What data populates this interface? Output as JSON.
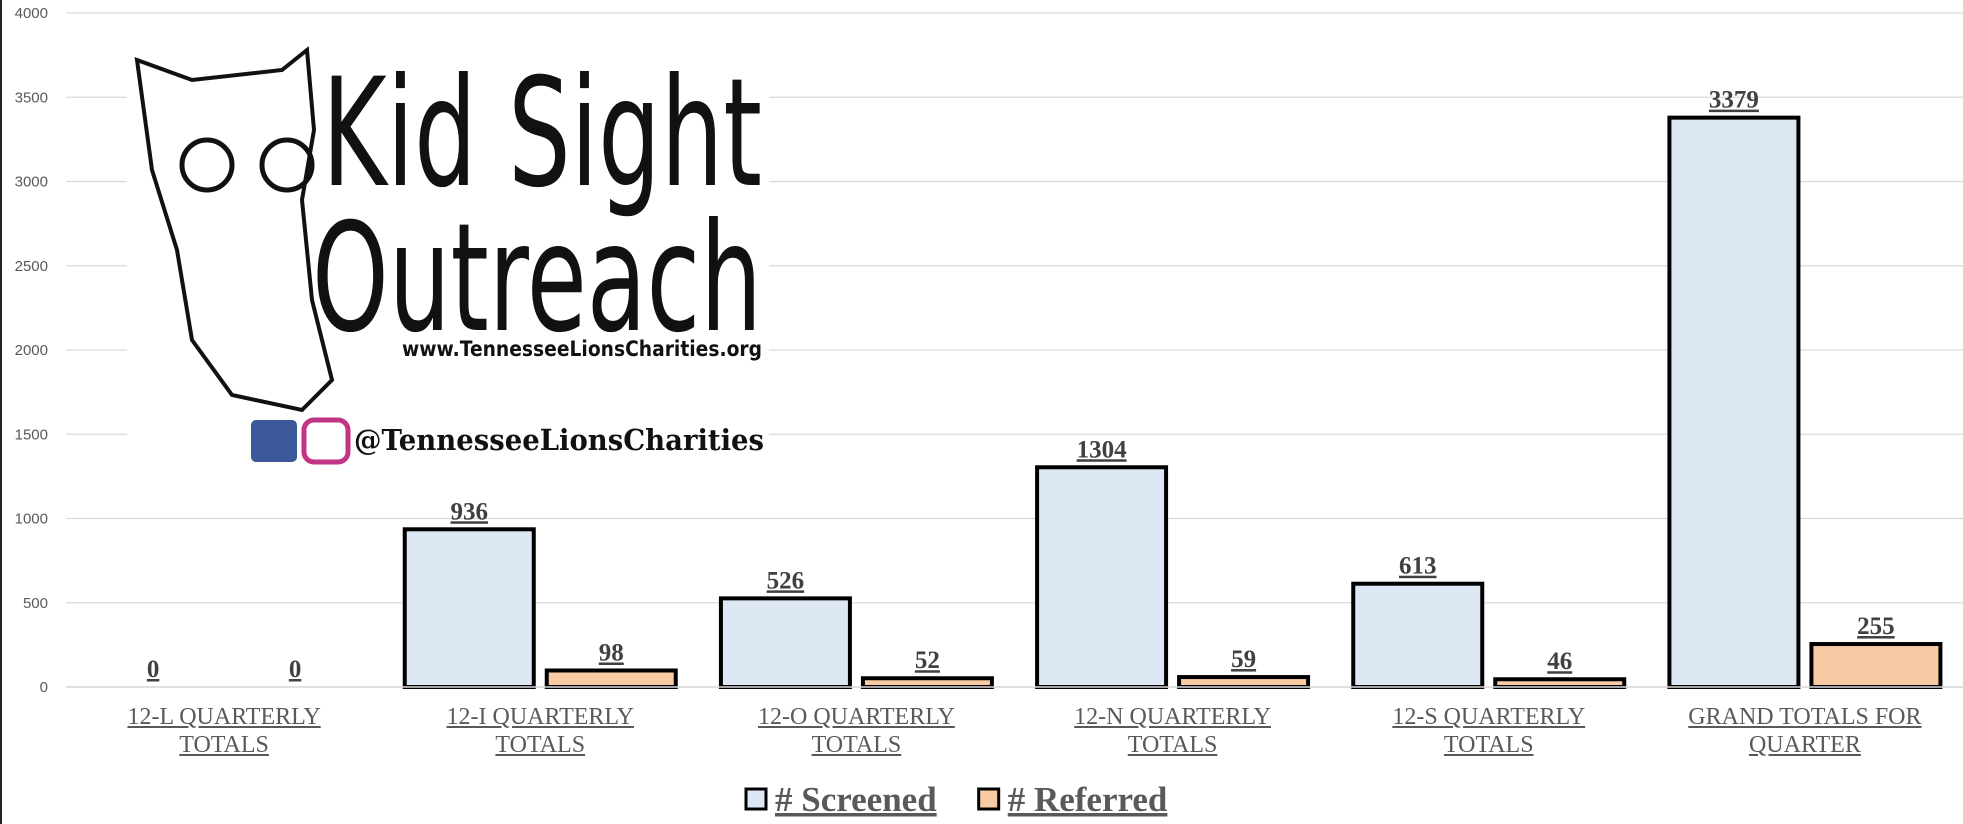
{
  "chart_data": {
    "type": "bar",
    "categories": [
      "12-L QUARTERLY TOTALS",
      "12-I QUARTERLY TOTALS",
      "12-O QUARTERLY TOTALS",
      "12-N QUARTERLY TOTALS",
      "12-S QUARTERLY TOTALS",
      "GRAND TOTALS FOR QUARTER"
    ],
    "series": [
      {
        "name": "# Screened",
        "color": "#dde8f4",
        "values": [
          0,
          936,
          526,
          1304,
          613,
          3379
        ]
      },
      {
        "name": "# Referred",
        "color": "#f8cba5",
        "values": [
          0,
          98,
          52,
          59,
          46,
          255
        ]
      }
    ],
    "ylim": [
      0,
      4000
    ],
    "yticks": [
      0,
      500,
      1000,
      1500,
      2000,
      2500,
      3000,
      3500,
      4000
    ],
    "grid": true,
    "annotations": [
      "Kid Sight",
      "Outreach",
      "www.TennesseeLionsCharities.org",
      "@TennesseeLionsCharities"
    ]
  }
}
